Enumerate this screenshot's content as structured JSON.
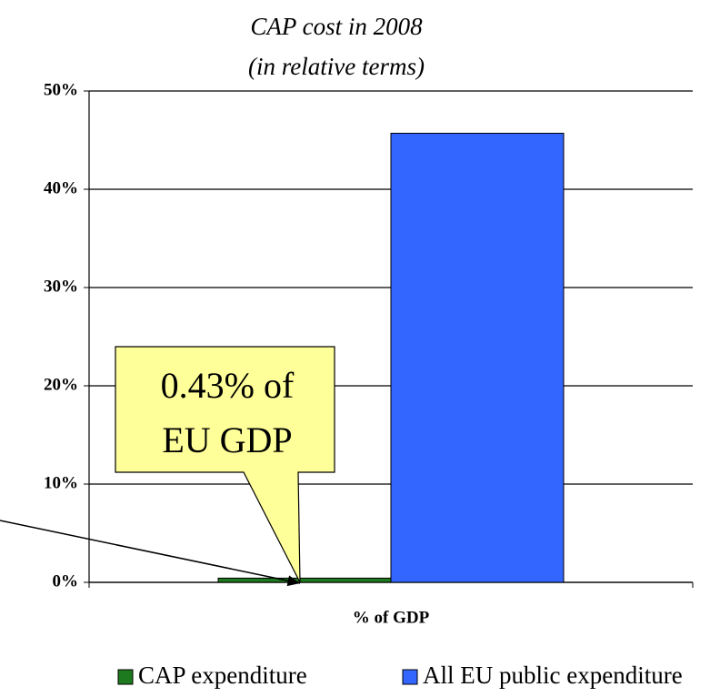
{
  "chart_data": {
    "type": "bar",
    "title": [
      "CAP cost in 2008",
      "(in relative terms)"
    ],
    "categories": [
      "% of GDP"
    ],
    "series": [
      {
        "name": "CAP expenditure",
        "color": "#1e7a1e",
        "values": [
          0.43
        ]
      },
      {
        "name": "All EU public expenditure",
        "color": "#3366ff",
        "values": [
          45.7
        ]
      }
    ],
    "annotation": [
      "0.43% of",
      "EU GDP"
    ],
    "ylim": [
      0,
      50
    ],
    "yticks": [
      {
        "value": 0,
        "label": "0%"
      },
      {
        "value": 10,
        "label": "10%"
      },
      {
        "value": 20,
        "label": "20%"
      },
      {
        "value": 30,
        "label": "30%"
      },
      {
        "value": 40,
        "label": "40%"
      },
      {
        "value": 50,
        "label": "50%"
      }
    ],
    "grid": true
  }
}
